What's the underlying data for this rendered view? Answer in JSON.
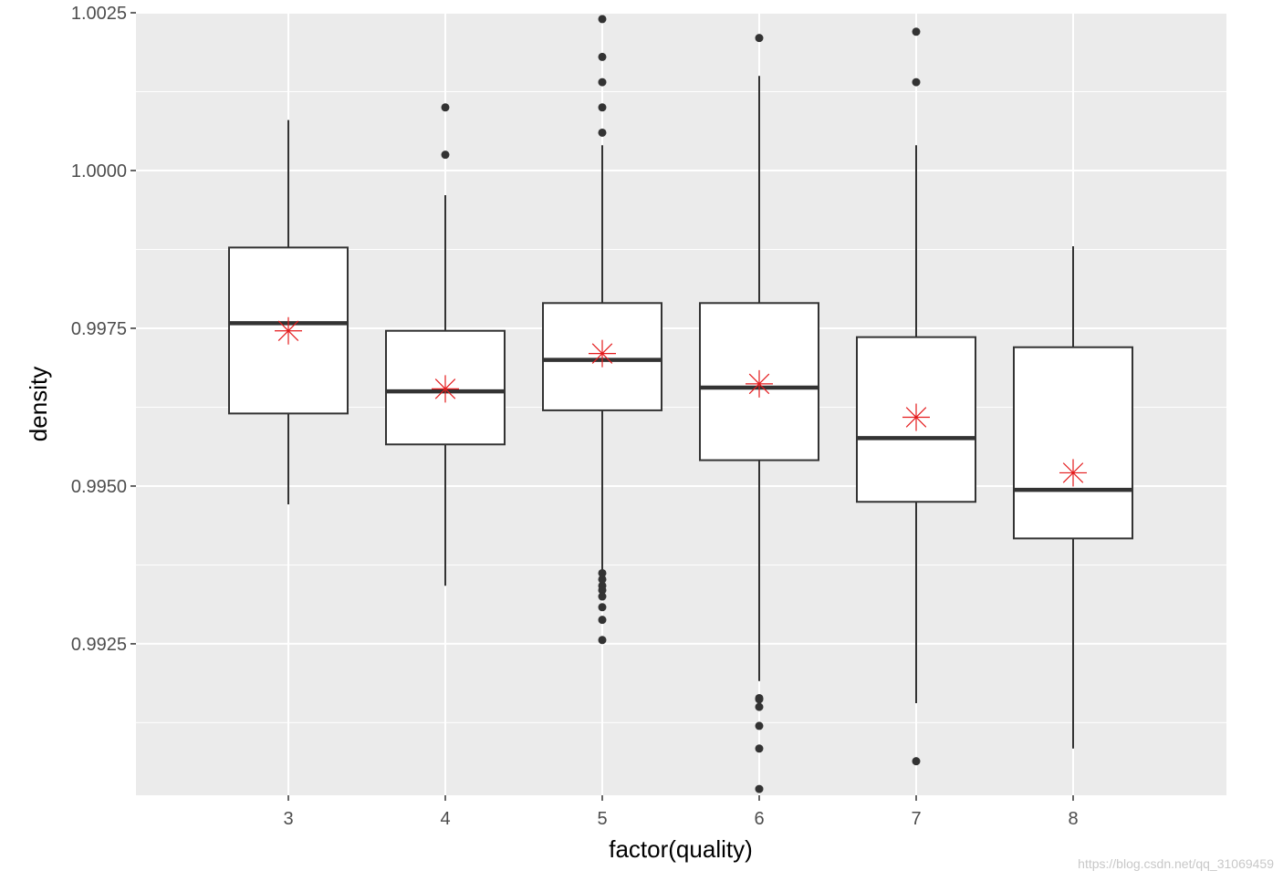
{
  "chart_data": {
    "type": "box",
    "xlabel": "factor(quality)",
    "ylabel": "density",
    "ylim": [
      0.9901,
      1.0025
    ],
    "y_ticks": [
      {
        "value": 0.9925,
        "label": "0.9925"
      },
      {
        "value": 0.995,
        "label": "0.9950"
      },
      {
        "value": 0.9975,
        "label": "0.9975"
      },
      {
        "value": 1.0,
        "label": "1.0000"
      },
      {
        "value": 1.0025,
        "label": "1.0025"
      }
    ],
    "y_minor_ticks": [
      0.99125,
      0.99375,
      0.99625,
      0.99875,
      1.00125
    ],
    "grid": true,
    "panel_background": "#ebebeb",
    "mean_marker_color": "#e41a1c",
    "categories": [
      "3",
      "4",
      "5",
      "6",
      "7",
      "8"
    ],
    "boxes": [
      {
        "category": "3",
        "whisker_low": 0.99471,
        "q1": 0.99615,
        "median": 0.99758,
        "q3": 0.99878,
        "whisker_high": 1.0008,
        "mean": 0.99746,
        "outliers": []
      },
      {
        "category": "4",
        "whisker_low": 0.99342,
        "q1": 0.99566,
        "median": 0.9965,
        "q3": 0.99746,
        "whisker_high": 0.99961,
        "mean": 0.99654,
        "outliers": [
          1.001,
          1.00025
        ]
      },
      {
        "category": "5",
        "whisker_low": 0.99358,
        "q1": 0.9962,
        "median": 0.997,
        "q3": 0.9979,
        "whisker_high": 1.0004,
        "mean": 0.9971,
        "outliers": [
          1.0024,
          1.0018,
          1.0014,
          1.001,
          1.0006,
          0.99362,
          0.99352,
          0.99342,
          0.99335,
          0.99325,
          0.99308,
          0.99288,
          0.99256
        ]
      },
      {
        "category": "6",
        "whisker_low": 0.99191,
        "q1": 0.99541,
        "median": 0.99656,
        "q3": 0.9979,
        "whisker_high": 1.0015,
        "mean": 0.99662,
        "outliers": [
          1.0021,
          0.99164,
          0.99162,
          0.9915,
          0.9912,
          0.99084,
          0.9902
        ]
      },
      {
        "category": "7",
        "whisker_low": 0.99156,
        "q1": 0.99475,
        "median": 0.99576,
        "q3": 0.99736,
        "whisker_high": 1.0004,
        "mean": 0.99609,
        "outliers": [
          1.0022,
          1.0014,
          0.99064
        ]
      },
      {
        "category": "8",
        "whisker_low": 0.99084,
        "q1": 0.99417,
        "median": 0.99494,
        "q3": 0.9972,
        "whisker_high": 0.9988,
        "mean": 0.99521,
        "outliers": []
      }
    ]
  },
  "watermark": "https://blog.csdn.net/qq_31069459"
}
